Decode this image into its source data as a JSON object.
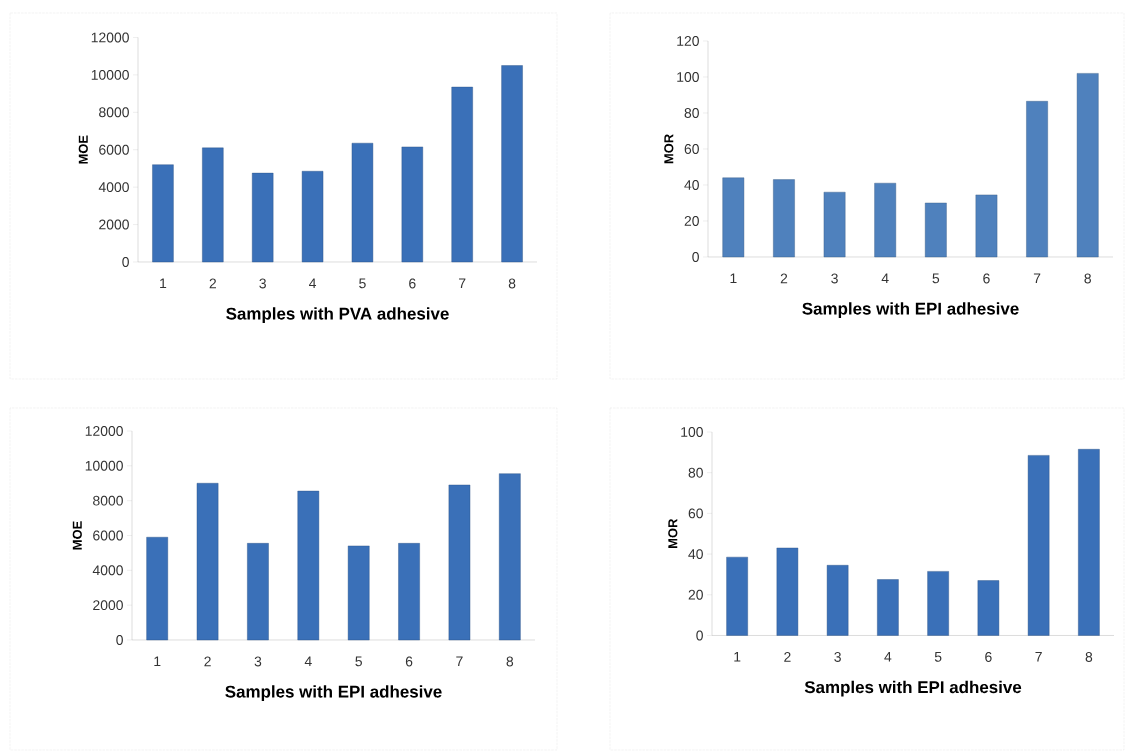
{
  "chart_data": [
    {
      "type": "bar",
      "xlabel": "Samples with  PVA adhesive",
      "ylabel": "MOE",
      "categories": [
        "1",
        "2",
        "3",
        "4",
        "5",
        "6",
        "7",
        "8"
      ],
      "values": [
        5200,
        6100,
        4750,
        4850,
        6350,
        6150,
        9350,
        10500
      ],
      "color": "#3a70b8",
      "ylim": [
        0,
        12000
      ],
      "yticks": [
        0,
        2000,
        4000,
        6000,
        8000,
        10000,
        12000
      ]
    },
    {
      "type": "bar",
      "xlabel": "Samples with  EPI adhesive",
      "ylabel": "MOR",
      "categories": [
        "1",
        "2",
        "3",
        "4",
        "5",
        "6",
        "7",
        "8"
      ],
      "values": [
        44,
        43,
        36,
        41,
        30,
        34.5,
        86.5,
        102
      ],
      "color": "#4f81bd",
      "ylim": [
        0,
        120
      ],
      "yticks": [
        0,
        20,
        40,
        60,
        80,
        100,
        120
      ]
    },
    {
      "type": "bar",
      "xlabel": "Samples with  EPI adhesive",
      "ylabel": "MOE",
      "categories": [
        "1",
        "2",
        "3",
        "4",
        "5",
        "6",
        "7",
        "8"
      ],
      "values": [
        5900,
        9000,
        5550,
        8550,
        5400,
        5550,
        8900,
        9550
      ],
      "color": "#3a70b8",
      "ylim": [
        0,
        12000
      ],
      "yticks": [
        0,
        2000,
        4000,
        6000,
        8000,
        10000,
        12000
      ]
    },
    {
      "type": "bar",
      "xlabel": "Samples with  EPI adhesive",
      "ylabel": "MOR",
      "categories": [
        "1",
        "2",
        "3",
        "4",
        "5",
        "6",
        "7",
        "8"
      ],
      "values": [
        38.5,
        43,
        34.5,
        27.5,
        31.5,
        27,
        88.5,
        91.5
      ],
      "color": "#3a70b8",
      "ylim": [
        0,
        100
      ],
      "yticks": [
        0,
        20,
        40,
        60,
        80,
        100
      ]
    }
  ]
}
